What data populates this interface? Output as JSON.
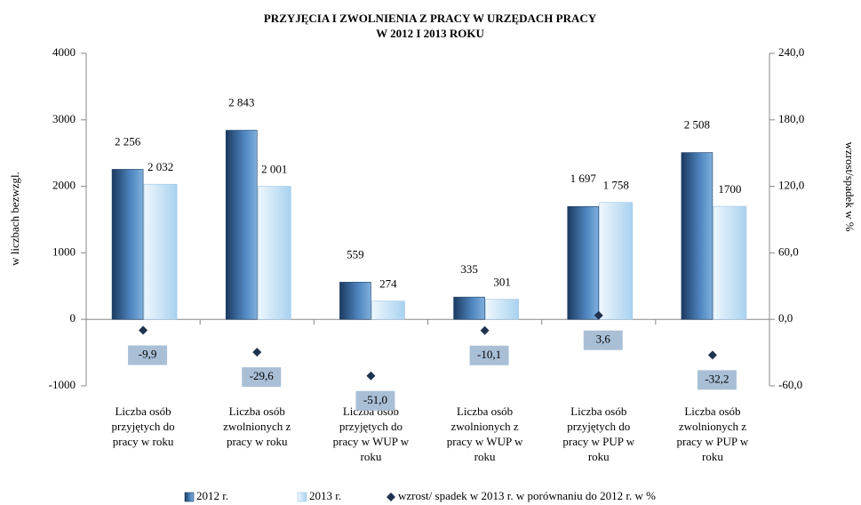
{
  "chart_data": {
    "type": "bar",
    "title": "PRZYJĘCIA I ZWOLNIENIA Z PRACY W URZĘDACH PRACY",
    "subtitle": "W 2012 I 2013 ROKU",
    "y_label": "w liczbach bezwzgl.",
    "y2_label": "wzrost/spadek w %",
    "categories": [
      "Liczba osób przyjętych do pracy w roku",
      "Liczba osób zwolnionych z pracy w roku",
      "Liczba osób przyjętych do pracy w WUP w roku",
      "Liczba osób zwolnionych z pracy w WUP w roku",
      "Liczba osób przyjętych do pracy w PUP w roku",
      "Liczba osób zwolnionych z pracy w PUP w roku"
    ],
    "series": [
      {
        "name": "2012 r.",
        "color": "#2c5788",
        "values": [
          2256,
          2843,
          559,
          335,
          1697,
          2508
        ],
        "value_labels": [
          "2 256",
          "2 843",
          "559",
          "335",
          "1 697",
          "2 508"
        ]
      },
      {
        "name": "2013 r.",
        "color": "#c6e2f7",
        "values": [
          2032,
          2001,
          274,
          301,
          1758,
          1700
        ],
        "value_labels": [
          "2 032",
          "2 001",
          "274",
          "301",
          "1 758",
          "1700"
        ]
      },
      {
        "name": "wzrost/ spadek w 2013 r. w porównaniu do 2012 r. w %",
        "color": "#1f3350",
        "axis": "y2",
        "type": "scatter",
        "values": [
          -9.9,
          -29.6,
          -51.0,
          -10.1,
          3.6,
          -32.2
        ],
        "value_labels": [
          "-9,9",
          "-29,6",
          "-51,0",
          "-10,1",
          "3,6",
          "-32,2"
        ]
      }
    ],
    "ylim": [
      -1000,
      4000
    ],
    "yticks": [
      -1000,
      0,
      1000,
      2000,
      3000,
      4000
    ],
    "y2lim": [
      -60,
      240
    ],
    "y2ticks": [
      {
        "value": -60,
        "label": "-60,0"
      },
      {
        "value": 0,
        "label": "0,0"
      },
      {
        "value": 60,
        "label": "60,0"
      },
      {
        "value": 120,
        "label": "120,0"
      },
      {
        "value": 180,
        "label": "180,0"
      },
      {
        "value": 240,
        "label": "240,0"
      }
    ],
    "legend": "bottom"
  }
}
